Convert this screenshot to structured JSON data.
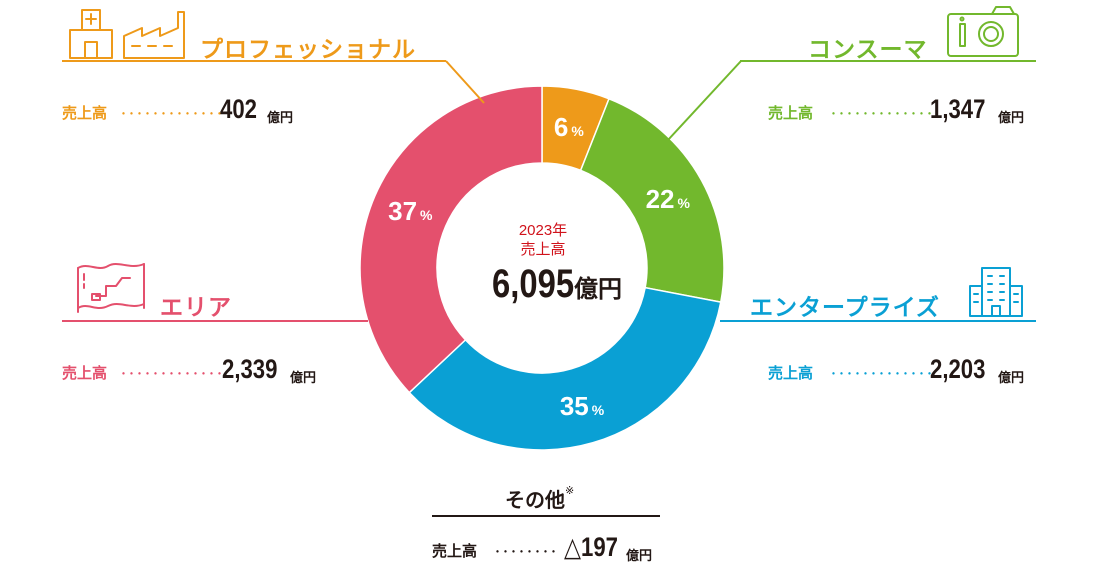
{
  "colors": {
    "professional": "#EE9A1A",
    "consumer": "#72B82D",
    "area": "#E4506D",
    "enterprise": "#0AA0D4",
    "other": "#231815",
    "center_label": "#D0121B"
  },
  "center": {
    "year": "2023年",
    "label": "売上高",
    "total": "6,095",
    "unit": "億円"
  },
  "segments": {
    "professional": {
      "name": "プロフェッショナル",
      "sales_label": "売上高",
      "dots": "･････････････",
      "value": "402",
      "unit": "億円",
      "icon": "hospital-factory-icon"
    },
    "consumer": {
      "name": "コンスーマ",
      "sales_label": "売上高",
      "dots": "･････････････",
      "value": "1,347",
      "unit": "億円",
      "icon": "camera-icon"
    },
    "area": {
      "name": "エリア",
      "sales_label": "売上高",
      "dots": "･････････････",
      "value": "2,339",
      "unit": "億円",
      "icon": "map-icon"
    },
    "enterprise": {
      "name": "エンタープライズ",
      "sales_label": "売上高",
      "dots": "･････････････",
      "value": "2,203",
      "unit": "億円",
      "icon": "office-building-icon"
    },
    "other": {
      "name": "その他",
      "note_mark": "※",
      "sales_label": "売上高",
      "dots": "････････",
      "value": "△197",
      "unit": "億円"
    }
  },
  "chart_data": {
    "type": "pie",
    "categories": [
      "プロフェッショナル",
      "コンスーマ",
      "エンタープライズ",
      "エリア"
    ],
    "values": [
      6,
      22,
      35,
      37
    ],
    "value_labels": [
      "6",
      "22",
      "35",
      "37"
    ],
    "percent_sign": "%",
    "colors": [
      "#EE9A1A",
      "#72B82D",
      "#0AA0D4",
      "#E4506D"
    ],
    "start_angle_deg": 0,
    "direction": "clockwise",
    "donut": true
  }
}
